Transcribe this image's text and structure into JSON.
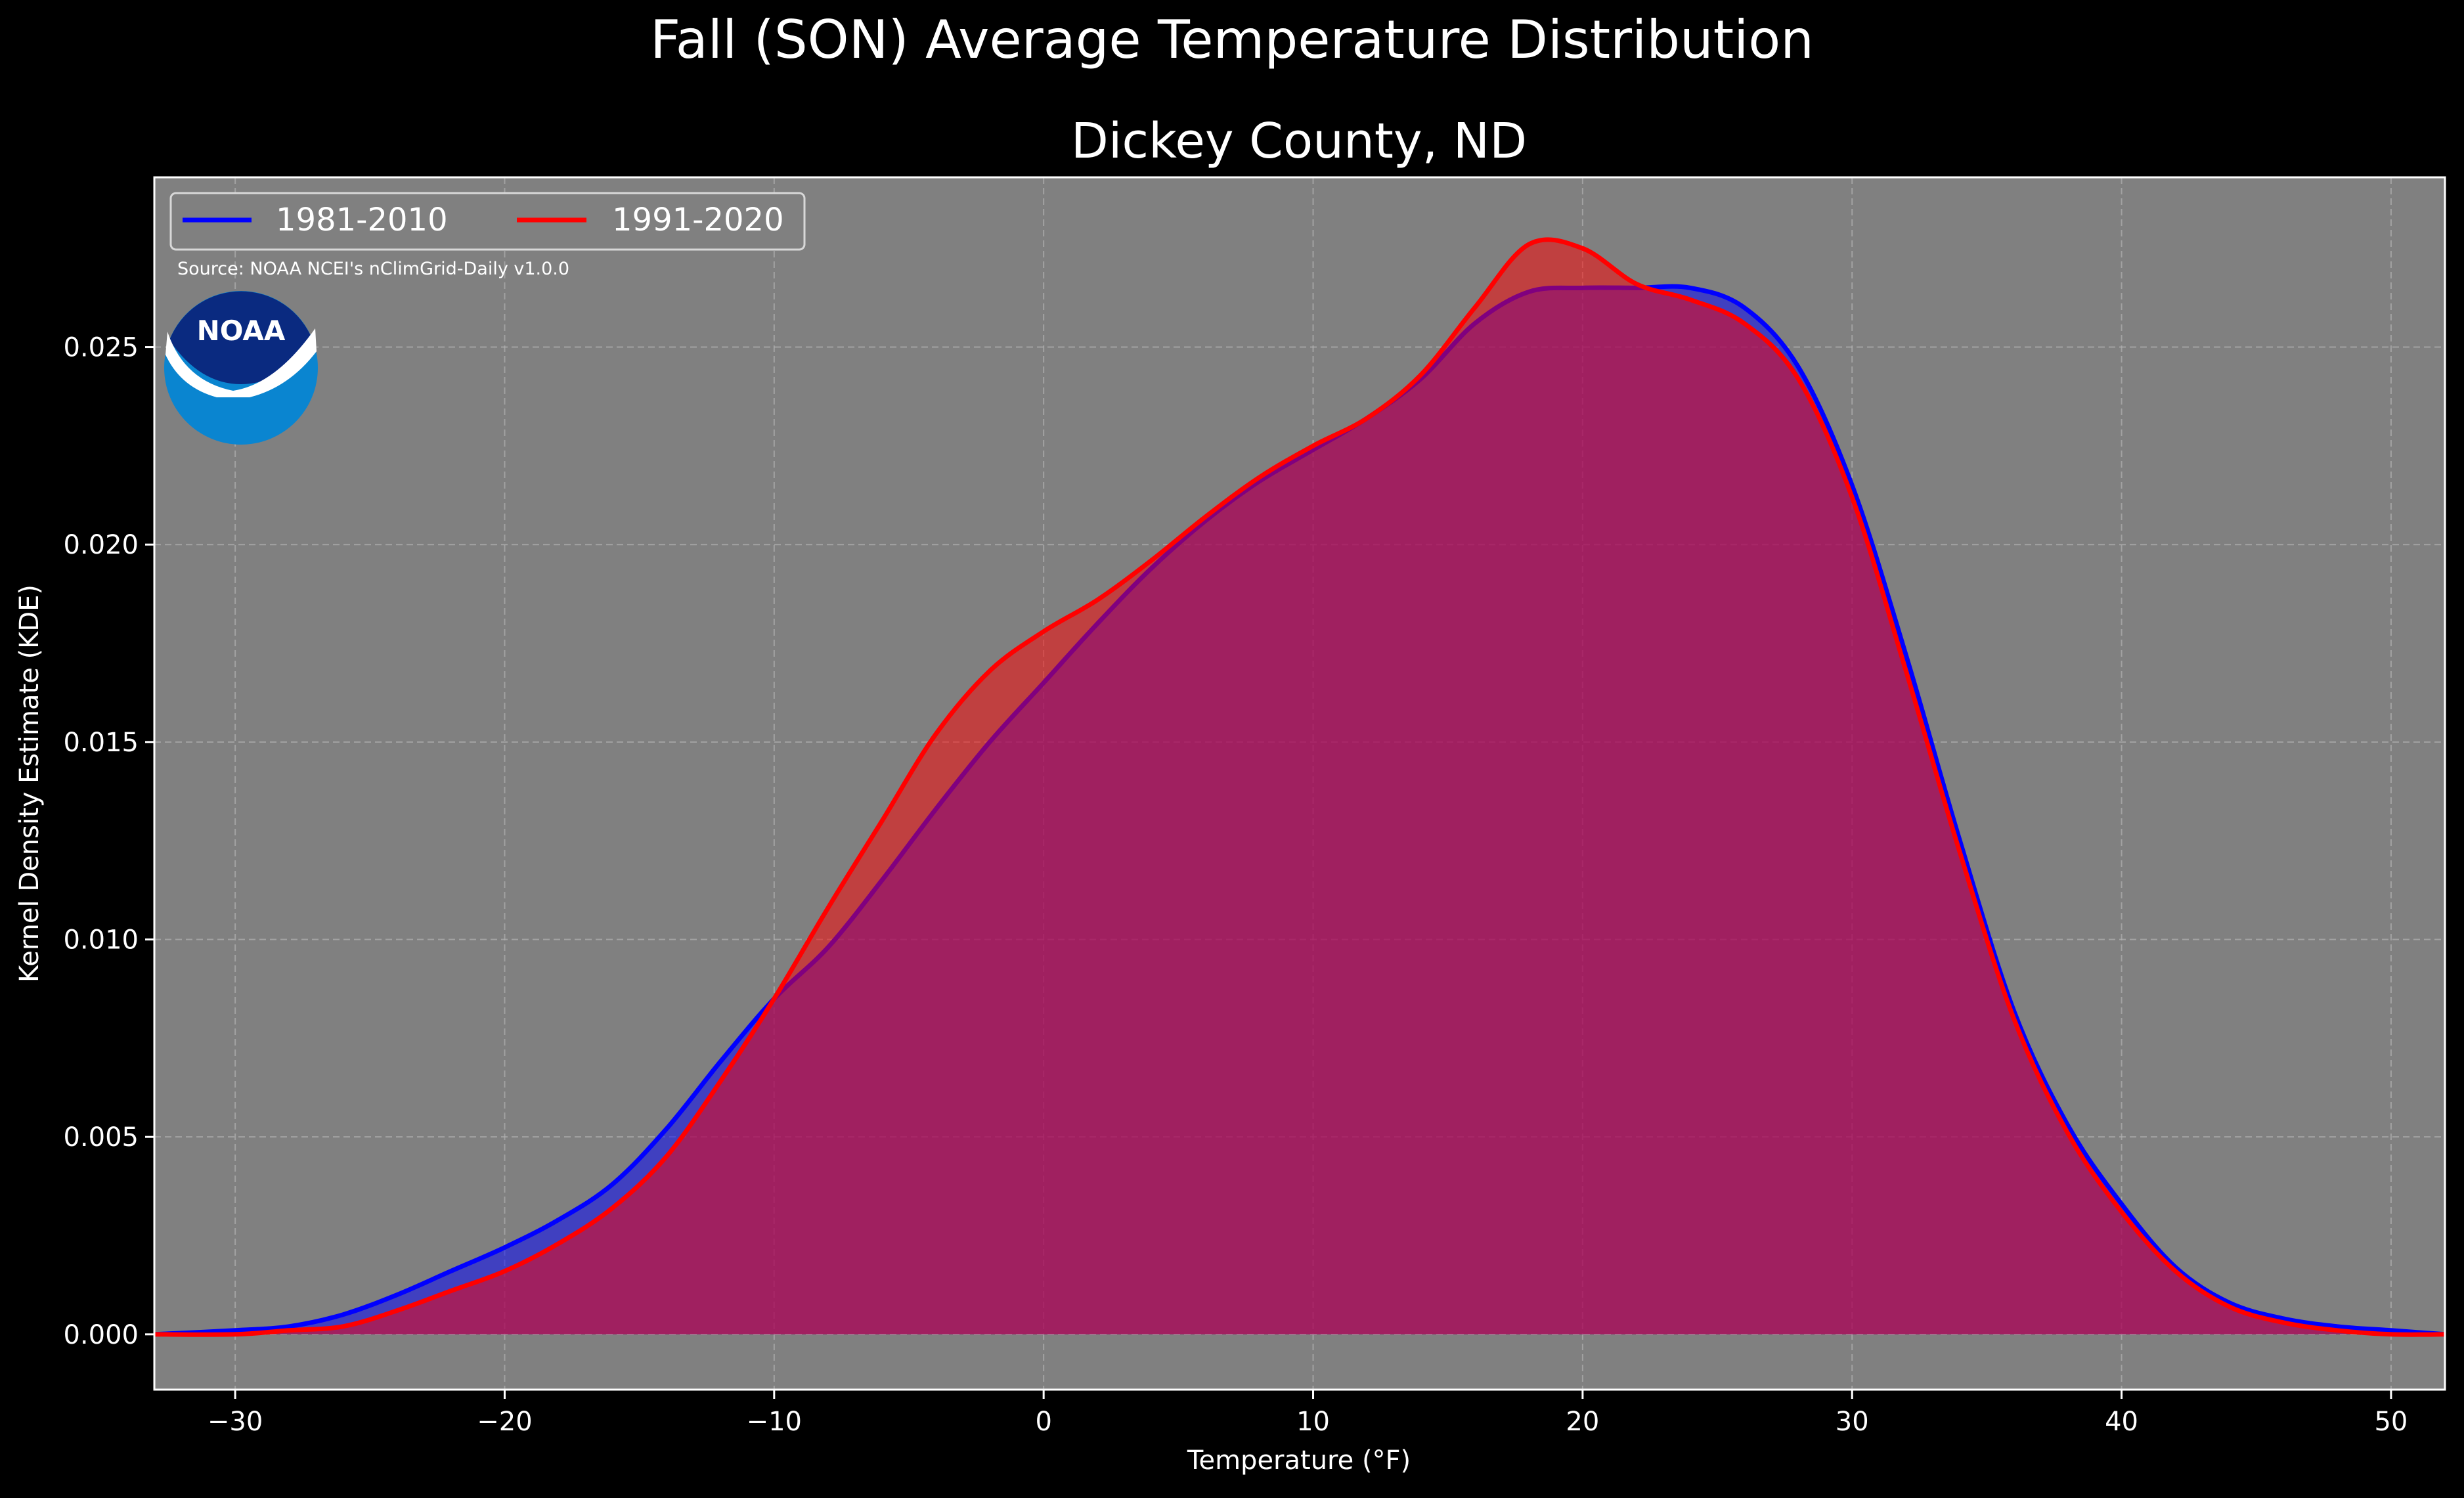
{
  "chart_data": {
    "type": "area",
    "suptitle": "Fall (SON) Average Temperature Distribution",
    "title": "Dickey County, ND",
    "xlabel": "Temperature ($^\\circ$F)",
    "xlabel_display": "Temperature (°F)",
    "ylabel": "Kernel Density Estimate (KDE)",
    "xlim": [
      -33,
      52
    ],
    "ylim": [
      -0.0014,
      0.0293
    ],
    "x_ticks": [
      -30,
      -20,
      -10,
      0,
      10,
      20,
      30,
      40,
      50
    ],
    "x_tick_labels": [
      "−30",
      "−20",
      "−10",
      "0",
      "10",
      "20",
      "30",
      "40",
      "50"
    ],
    "y_ticks": [
      0.0,
      0.005,
      0.01,
      0.015,
      0.02,
      0.025
    ],
    "y_tick_labels": [
      "0.000",
      "0.005",
      "0.010",
      "0.015",
      "0.020",
      "0.025"
    ],
    "grid": true,
    "legend_position": "top-left",
    "source_note": "Source: NOAA NCEI's nClimGrid-Daily v1.0.0",
    "logo_text": "NOAA",
    "colors": {
      "background": "#000000",
      "plot_background": "#808080",
      "text": "#ffffff",
      "grid": "#b0b0b0",
      "logo_outer": "#0a85d0",
      "logo_inner": "#0a2a80"
    },
    "series": [
      {
        "name": "1981-2010",
        "color": "#0000ff",
        "x": [
          -33,
          -30,
          -28,
          -26,
          -24,
          -22,
          -20,
          -18,
          -16,
          -14,
          -12,
          -10,
          -8,
          -6,
          -4,
          -2,
          0,
          2,
          4,
          6,
          8,
          10,
          12,
          14,
          16,
          18,
          20,
          22,
          24,
          26,
          28,
          30,
          32,
          34,
          36,
          38,
          40,
          42,
          44,
          46,
          48,
          50,
          52
        ],
        "y": [
          0.0,
          0.0001,
          0.0002,
          0.0005,
          0.001,
          0.0016,
          0.0022,
          0.0029,
          0.0038,
          0.0052,
          0.0069,
          0.0085,
          0.0098,
          0.0115,
          0.0133,
          0.015,
          0.0165,
          0.018,
          0.0194,
          0.0206,
          0.0216,
          0.0224,
          0.0232,
          0.0242,
          0.0256,
          0.0264,
          0.0265,
          0.0265,
          0.0265,
          0.026,
          0.0245,
          0.0215,
          0.0172,
          0.0125,
          0.0082,
          0.0053,
          0.0033,
          0.0017,
          0.0008,
          0.0004,
          0.0002,
          0.0001,
          0.0
        ]
      },
      {
        "name": "1991-2020",
        "color": "#ff0000",
        "x": [
          -33,
          -30,
          -28,
          -26,
          -24,
          -22,
          -20,
          -18,
          -16,
          -14,
          -12,
          -10,
          -8,
          -6,
          -4,
          -2,
          0,
          2,
          4,
          6,
          8,
          10,
          12,
          14,
          16,
          18,
          20,
          22,
          24,
          26,
          28,
          30,
          32,
          34,
          36,
          38,
          40,
          42,
          44,
          46,
          48,
          50,
          52
        ],
        "y": [
          0.0,
          0.0,
          0.0001,
          0.0002,
          0.0006,
          0.0011,
          0.0016,
          0.0023,
          0.0032,
          0.0045,
          0.0064,
          0.0085,
          0.0108,
          0.013,
          0.0152,
          0.0168,
          0.0178,
          0.0186,
          0.0196,
          0.0207,
          0.0217,
          0.0225,
          0.0232,
          0.0243,
          0.026,
          0.0276,
          0.0275,
          0.0266,
          0.0262,
          0.0256,
          0.0242,
          0.0212,
          0.0168,
          0.0122,
          0.008,
          0.0051,
          0.0031,
          0.0016,
          0.0007,
          0.0003,
          0.0001,
          0.0,
          0.0
        ]
      }
    ]
  }
}
